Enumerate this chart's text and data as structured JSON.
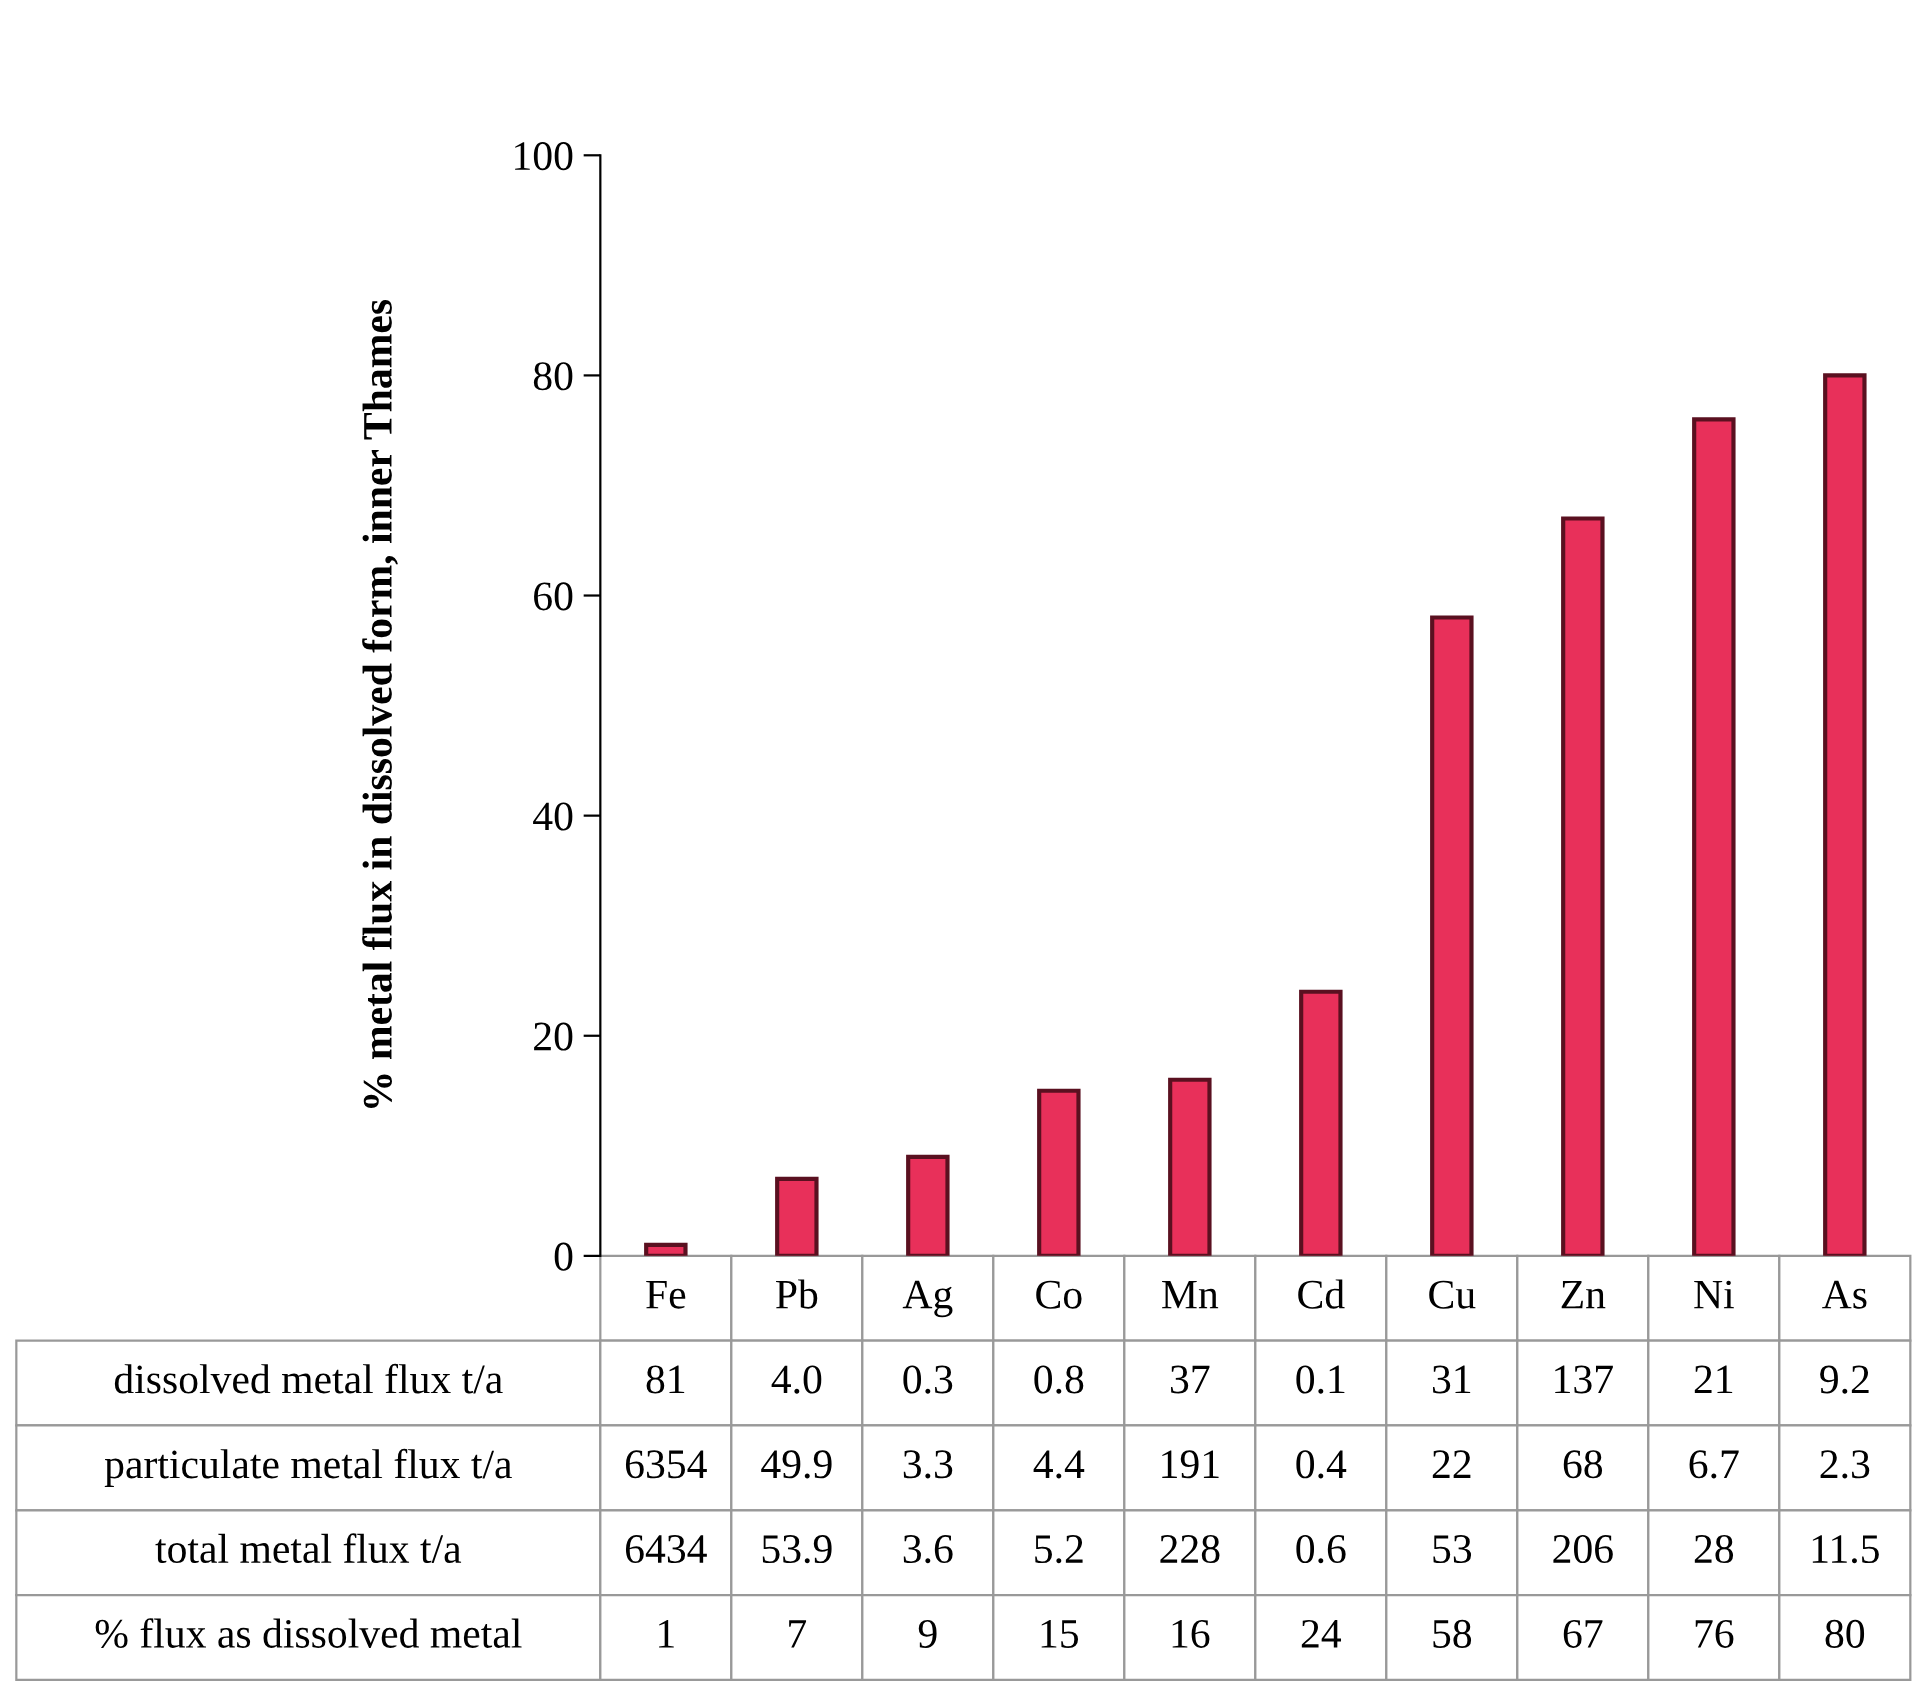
{
  "chart_data": {
    "type": "bar",
    "ylabel": "% metal flux in dissolved form, inner Thames",
    "categories": [
      "Fe",
      "Pb",
      "Ag",
      "Co",
      "Mn",
      "Cd",
      "Cu",
      "Zn",
      "Ni",
      "As"
    ],
    "values": [
      1,
      7,
      9,
      15,
      16,
      24,
      58,
      67,
      76,
      80
    ],
    "color": "#e8305a",
    "ylim": [
      0,
      100
    ],
    "yticks": [
      0,
      20,
      40,
      60,
      80,
      100
    ],
    "grid": false,
    "legend": false,
    "annotations": [
      "dissolved metal flux t/a",
      "81",
      "4.0",
      "0.3",
      "0.8",
      "37",
      "0.1",
      "31",
      "137",
      "21",
      "9.2",
      "particulate metal flux t/a",
      "6354",
      "49.9",
      "3.3",
      "4.4",
      "191",
      "0.4",
      "22",
      "68",
      "6.7",
      "2.3",
      "total metal flux t/a",
      "6434",
      "53.9",
      "3.6",
      "5.2",
      "228",
      "0.6",
      "53",
      "206",
      "28",
      "11.5",
      "% flux as dissolved metal"
    ],
    "value_labels": [
      "1",
      "7",
      "9",
      "15",
      "16",
      "24",
      "58",
      "67",
      "76",
      "80"
    ]
  }
}
